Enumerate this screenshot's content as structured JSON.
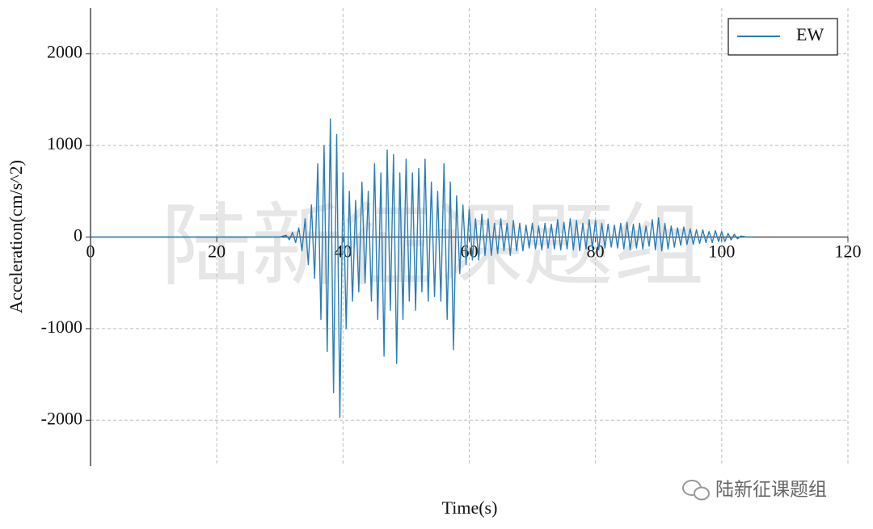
{
  "chart_data": {
    "type": "line",
    "xlabel": "Time(s)",
    "ylabel": "Acceleration(cm/s^2)",
    "watermark": "陆新征课题组",
    "credit": "陆新征课题组",
    "xlim": [
      0,
      120
    ],
    "xticks": [
      0,
      20,
      40,
      60,
      80,
      100,
      120
    ],
    "ylim": [
      -2500,
      2500
    ],
    "yticks": [
      -2000,
      -1000,
      0,
      1000,
      2000
    ],
    "grid": true,
    "legend": "upper right",
    "x": [
      0,
      30,
      31,
      31.5,
      32,
      32.5,
      33,
      33.5,
      34,
      34.5,
      35,
      35.5,
      36,
      36.5,
      37,
      37.5,
      38,
      38.5,
      39,
      39.5,
      40,
      40.5,
      41,
      41.5,
      42,
      42.5,
      43,
      43.5,
      44,
      44.5,
      45,
      45.5,
      46,
      46.5,
      47,
      47.5,
      48,
      48.5,
      49,
      49.5,
      50,
      50.5,
      51,
      51.5,
      52,
      52.5,
      53,
      53.5,
      54,
      54.5,
      55,
      55.5,
      56,
      56.5,
      57,
      57.5,
      58,
      58.5,
      59,
      59.5,
      60,
      60.5,
      61,
      61.5,
      62,
      62.5,
      63,
      63.5,
      64,
      64.5,
      65,
      65.5,
      66,
      66.5,
      67,
      67.5,
      68,
      68.5,
      69,
      69.5,
      70,
      70.5,
      71,
      71.5,
      72,
      72.5,
      73,
      73.5,
      74,
      74.5,
      75,
      75.5,
      76,
      76.5,
      77,
      77.5,
      78,
      78.5,
      79,
      79.5,
      80,
      80.5,
      81,
      81.5,
      82,
      82.5,
      83,
      83.5,
      84,
      84.5,
      85,
      85.5,
      86,
      86.5,
      87,
      87.5,
      88,
      88.5,
      89,
      89.5,
      90,
      90.5,
      91,
      91.5,
      92,
      92.5,
      93,
      93.5,
      94,
      94.5,
      95,
      95.5,
      96,
      96.5,
      97,
      97.5,
      98,
      98.5,
      99,
      99.5,
      100,
      100.5,
      101,
      101.5,
      102,
      102.5,
      103,
      104,
      105
    ],
    "series": [
      {
        "name": "EW",
        "color": "#2a7db5",
        "values": [
          0,
          0,
          20,
          -30,
          50,
          -60,
          100,
          -150,
          200,
          -300,
          350,
          -450,
          800,
          -900,
          1000,
          -1250,
          1290,
          -1700,
          1120,
          -1970,
          700,
          -1000,
          500,
          -700,
          400,
          -600,
          600,
          -500,
          500,
          -700,
          800,
          -900,
          700,
          -1300,
          950,
          -800,
          900,
          -1380,
          700,
          -900,
          850,
          -700,
          700,
          -800,
          750,
          -600,
          850,
          -700,
          600,
          -650,
          500,
          -700,
          800,
          -900,
          600,
          -1230,
          450,
          -400,
          350,
          -300,
          300,
          -250,
          200,
          -250,
          250,
          -200,
          200,
          -200,
          150,
          -180,
          200,
          -150,
          150,
          -200,
          180,
          -150,
          150,
          -150,
          130,
          -120,
          150,
          -130,
          120,
          -140,
          150,
          -120,
          140,
          -130,
          190,
          -140,
          160,
          -130,
          200,
          -140,
          180,
          -150,
          150,
          -130,
          190,
          -120,
          180,
          -140,
          150,
          -120,
          140,
          -110,
          130,
          -120,
          150,
          -130,
          160,
          -140,
          140,
          -120,
          150,
          -130,
          120,
          -100,
          190,
          -140,
          210,
          -150,
          150,
          -130,
          120,
          -110,
          100,
          -90,
          110,
          -80,
          90,
          -80,
          80,
          -70,
          80,
          -60,
          60,
          -60,
          70,
          -50,
          60,
          -50,
          40,
          -30,
          30,
          -20,
          10,
          0,
          0
        ]
      }
    ]
  }
}
